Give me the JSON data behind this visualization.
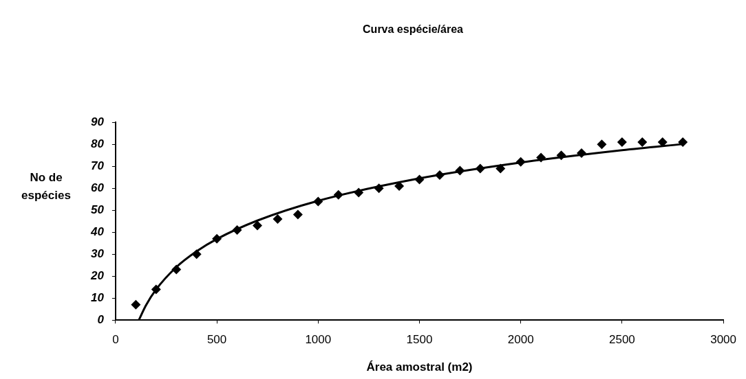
{
  "chart_data": {
    "type": "scatter",
    "title": "Curva espécie/área",
    "xlabel": "Área amostral (m2)",
    "ylabel": "No de espécies",
    "xlim": [
      0,
      3000
    ],
    "xticks": [
      0,
      500,
      1000,
      1500,
      2000,
      2500,
      3000
    ],
    "ylim": [
      0,
      90
    ],
    "yticks": [
      0,
      10,
      20,
      30,
      40,
      50,
      60,
      70,
      80,
      90
    ],
    "grid": false,
    "legend": false,
    "marker": "diamond",
    "series": [
      {
        "color": "#000000",
        "x": [
          100,
          200,
          300,
          400,
          500,
          600,
          700,
          800,
          900,
          1000,
          1100,
          1200,
          1300,
          1400,
          1500,
          1600,
          1700,
          1800,
          1900,
          2000,
          2100,
          2200,
          2300,
          2400,
          2500,
          2600,
          2700,
          2800
        ],
        "values": [
          7,
          14,
          23,
          30,
          37,
          41,
          43,
          46,
          48,
          54,
          57,
          58,
          60,
          61,
          64,
          66,
          68,
          69,
          69,
          72,
          74,
          75,
          76,
          80,
          81,
          81,
          81,
          81
        ]
      },
      {
        "type": "line",
        "color": "#000000",
        "marker": "none",
        "x": [
          115,
          150,
          200,
          300,
          400,
          500,
          700,
          1000,
          1500,
          2000,
          2500,
          2800
        ],
        "values": [
          0,
          6.7,
          13.9,
          24.1,
          31.3,
          36.9,
          45.3,
          54.3,
          64.5,
          71.7,
          77.3,
          80.1
        ]
      }
    ]
  }
}
